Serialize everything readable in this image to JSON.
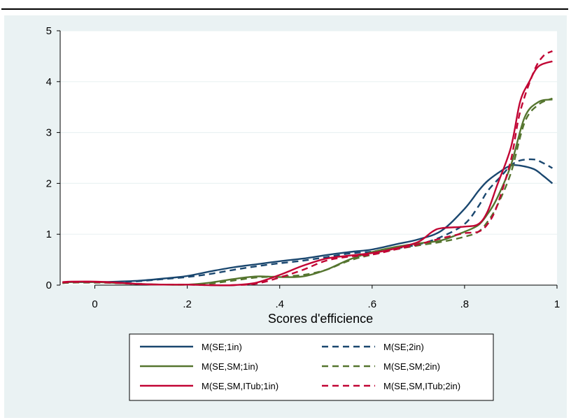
{
  "chart_data": {
    "type": "line",
    "xlabel": "Scores d'efficience",
    "ylabel": "",
    "xlim": [
      -0.075,
      1.0
    ],
    "ylim": [
      0,
      5
    ],
    "x_ticks": [
      0,
      0.2,
      0.4,
      0.6,
      0.8,
      1
    ],
    "x_tick_labels": [
      "0",
      ".2",
      ".4",
      ".6",
      ".8",
      "1"
    ],
    "y_ticks": [
      0,
      1,
      2,
      3,
      4,
      5
    ],
    "y_tick_labels": [
      "0",
      "1",
      "2",
      "3",
      "4",
      "5"
    ],
    "grid": "horizontal",
    "legend_position": "bottom",
    "colors": {
      "background": "#eaf2f3",
      "plot_background": "#ffffff",
      "grid": "#eaf2f3",
      "navy": "#1a476f",
      "green": "#55752f",
      "maroon": "#c10534"
    },
    "series": [
      {
        "name": "M(SE;1in)",
        "color": "#1a476f",
        "dash": "solid",
        "x": [
          -0.07,
          -0.05,
          0.0,
          0.05,
          0.1,
          0.15,
          0.2,
          0.25,
          0.3,
          0.35,
          0.4,
          0.45,
          0.5,
          0.55,
          0.6,
          0.65,
          0.7,
          0.75,
          0.8,
          0.83,
          0.85,
          0.88,
          0.9,
          0.92,
          0.95,
          0.97,
          0.99
        ],
        "y": [
          0.05,
          0.06,
          0.06,
          0.07,
          0.09,
          0.13,
          0.18,
          0.27,
          0.35,
          0.41,
          0.47,
          0.52,
          0.59,
          0.65,
          0.7,
          0.8,
          0.9,
          1.07,
          1.5,
          1.85,
          2.05,
          2.25,
          2.35,
          2.35,
          2.28,
          2.15,
          2.0
        ]
      },
      {
        "name": "M(SE;2in)",
        "color": "#1a476f",
        "dash": "dashed",
        "x": [
          -0.07,
          -0.05,
          0.0,
          0.05,
          0.1,
          0.15,
          0.2,
          0.25,
          0.3,
          0.35,
          0.4,
          0.45,
          0.5,
          0.55,
          0.6,
          0.65,
          0.7,
          0.75,
          0.8,
          0.83,
          0.85,
          0.88,
          0.9,
          0.92,
          0.95,
          0.97,
          0.99
        ],
        "y": [
          0.04,
          0.05,
          0.05,
          0.06,
          0.08,
          0.12,
          0.16,
          0.22,
          0.3,
          0.37,
          0.43,
          0.48,
          0.55,
          0.62,
          0.66,
          0.72,
          0.8,
          0.95,
          1.2,
          1.55,
          1.85,
          2.15,
          2.35,
          2.45,
          2.47,
          2.4,
          2.3
        ]
      },
      {
        "name": "M(SE,SM;1in)",
        "color": "#55752f",
        "dash": "solid",
        "x": [
          -0.07,
          -0.05,
          0.0,
          0.05,
          0.1,
          0.15,
          0.2,
          0.25,
          0.3,
          0.35,
          0.4,
          0.45,
          0.5,
          0.55,
          0.6,
          0.65,
          0.7,
          0.75,
          0.8,
          0.83,
          0.85,
          0.87,
          0.9,
          0.93,
          0.96,
          0.99
        ],
        "y": [
          0.05,
          0.06,
          0.06,
          0.04,
          0.02,
          0.01,
          0.01,
          0.05,
          0.12,
          0.17,
          0.16,
          0.17,
          0.3,
          0.5,
          0.65,
          0.75,
          0.82,
          0.88,
          1.05,
          1.18,
          1.4,
          1.7,
          2.35,
          3.3,
          3.6,
          3.65
        ]
      },
      {
        "name": "M(SE,SM;2in)",
        "color": "#55752f",
        "dash": "dashed",
        "x": [
          -0.07,
          -0.05,
          0.0,
          0.05,
          0.1,
          0.15,
          0.2,
          0.25,
          0.3,
          0.35,
          0.4,
          0.45,
          0.5,
          0.55,
          0.6,
          0.65,
          0.7,
          0.75,
          0.8,
          0.83,
          0.85,
          0.87,
          0.9,
          0.93,
          0.96,
          0.99
        ],
        "y": [
          0.04,
          0.05,
          0.05,
          0.04,
          0.02,
          0.01,
          0.01,
          0.03,
          0.09,
          0.15,
          0.17,
          0.2,
          0.3,
          0.48,
          0.6,
          0.7,
          0.78,
          0.85,
          0.95,
          1.05,
          1.25,
          1.55,
          2.2,
          3.2,
          3.55,
          3.67
        ]
      },
      {
        "name": "M(SE,SM,ITub;1in)",
        "color": "#c10534",
        "dash": "solid",
        "x": [
          -0.07,
          -0.05,
          0.0,
          0.05,
          0.1,
          0.15,
          0.2,
          0.25,
          0.3,
          0.35,
          0.4,
          0.45,
          0.5,
          0.55,
          0.6,
          0.65,
          0.7,
          0.73,
          0.75,
          0.8,
          0.83,
          0.85,
          0.87,
          0.9,
          0.92,
          0.94,
          0.96,
          0.99
        ],
        "y": [
          0.06,
          0.07,
          0.07,
          0.05,
          0.02,
          0.01,
          0.01,
          0.0,
          0.0,
          0.05,
          0.2,
          0.38,
          0.52,
          0.58,
          0.63,
          0.72,
          0.85,
          1.05,
          1.12,
          1.15,
          1.2,
          1.45,
          1.95,
          2.7,
          3.6,
          4.0,
          4.3,
          4.4
        ]
      },
      {
        "name": "M(SE,SM,ITub;2in)",
        "color": "#c10534",
        "dash": "dashed",
        "x": [
          -0.07,
          -0.05,
          0.0,
          0.05,
          0.1,
          0.15,
          0.2,
          0.25,
          0.3,
          0.35,
          0.4,
          0.45,
          0.5,
          0.55,
          0.6,
          0.65,
          0.7,
          0.75,
          0.8,
          0.83,
          0.85,
          0.87,
          0.9,
          0.92,
          0.95,
          0.97,
          0.99
        ],
        "y": [
          0.05,
          0.06,
          0.06,
          0.04,
          0.02,
          0.01,
          0.01,
          0.0,
          0.0,
          0.03,
          0.15,
          0.3,
          0.48,
          0.56,
          0.6,
          0.7,
          0.8,
          0.92,
          1.02,
          1.05,
          1.2,
          1.55,
          2.45,
          3.4,
          4.2,
          4.5,
          4.6
        ]
      }
    ]
  }
}
